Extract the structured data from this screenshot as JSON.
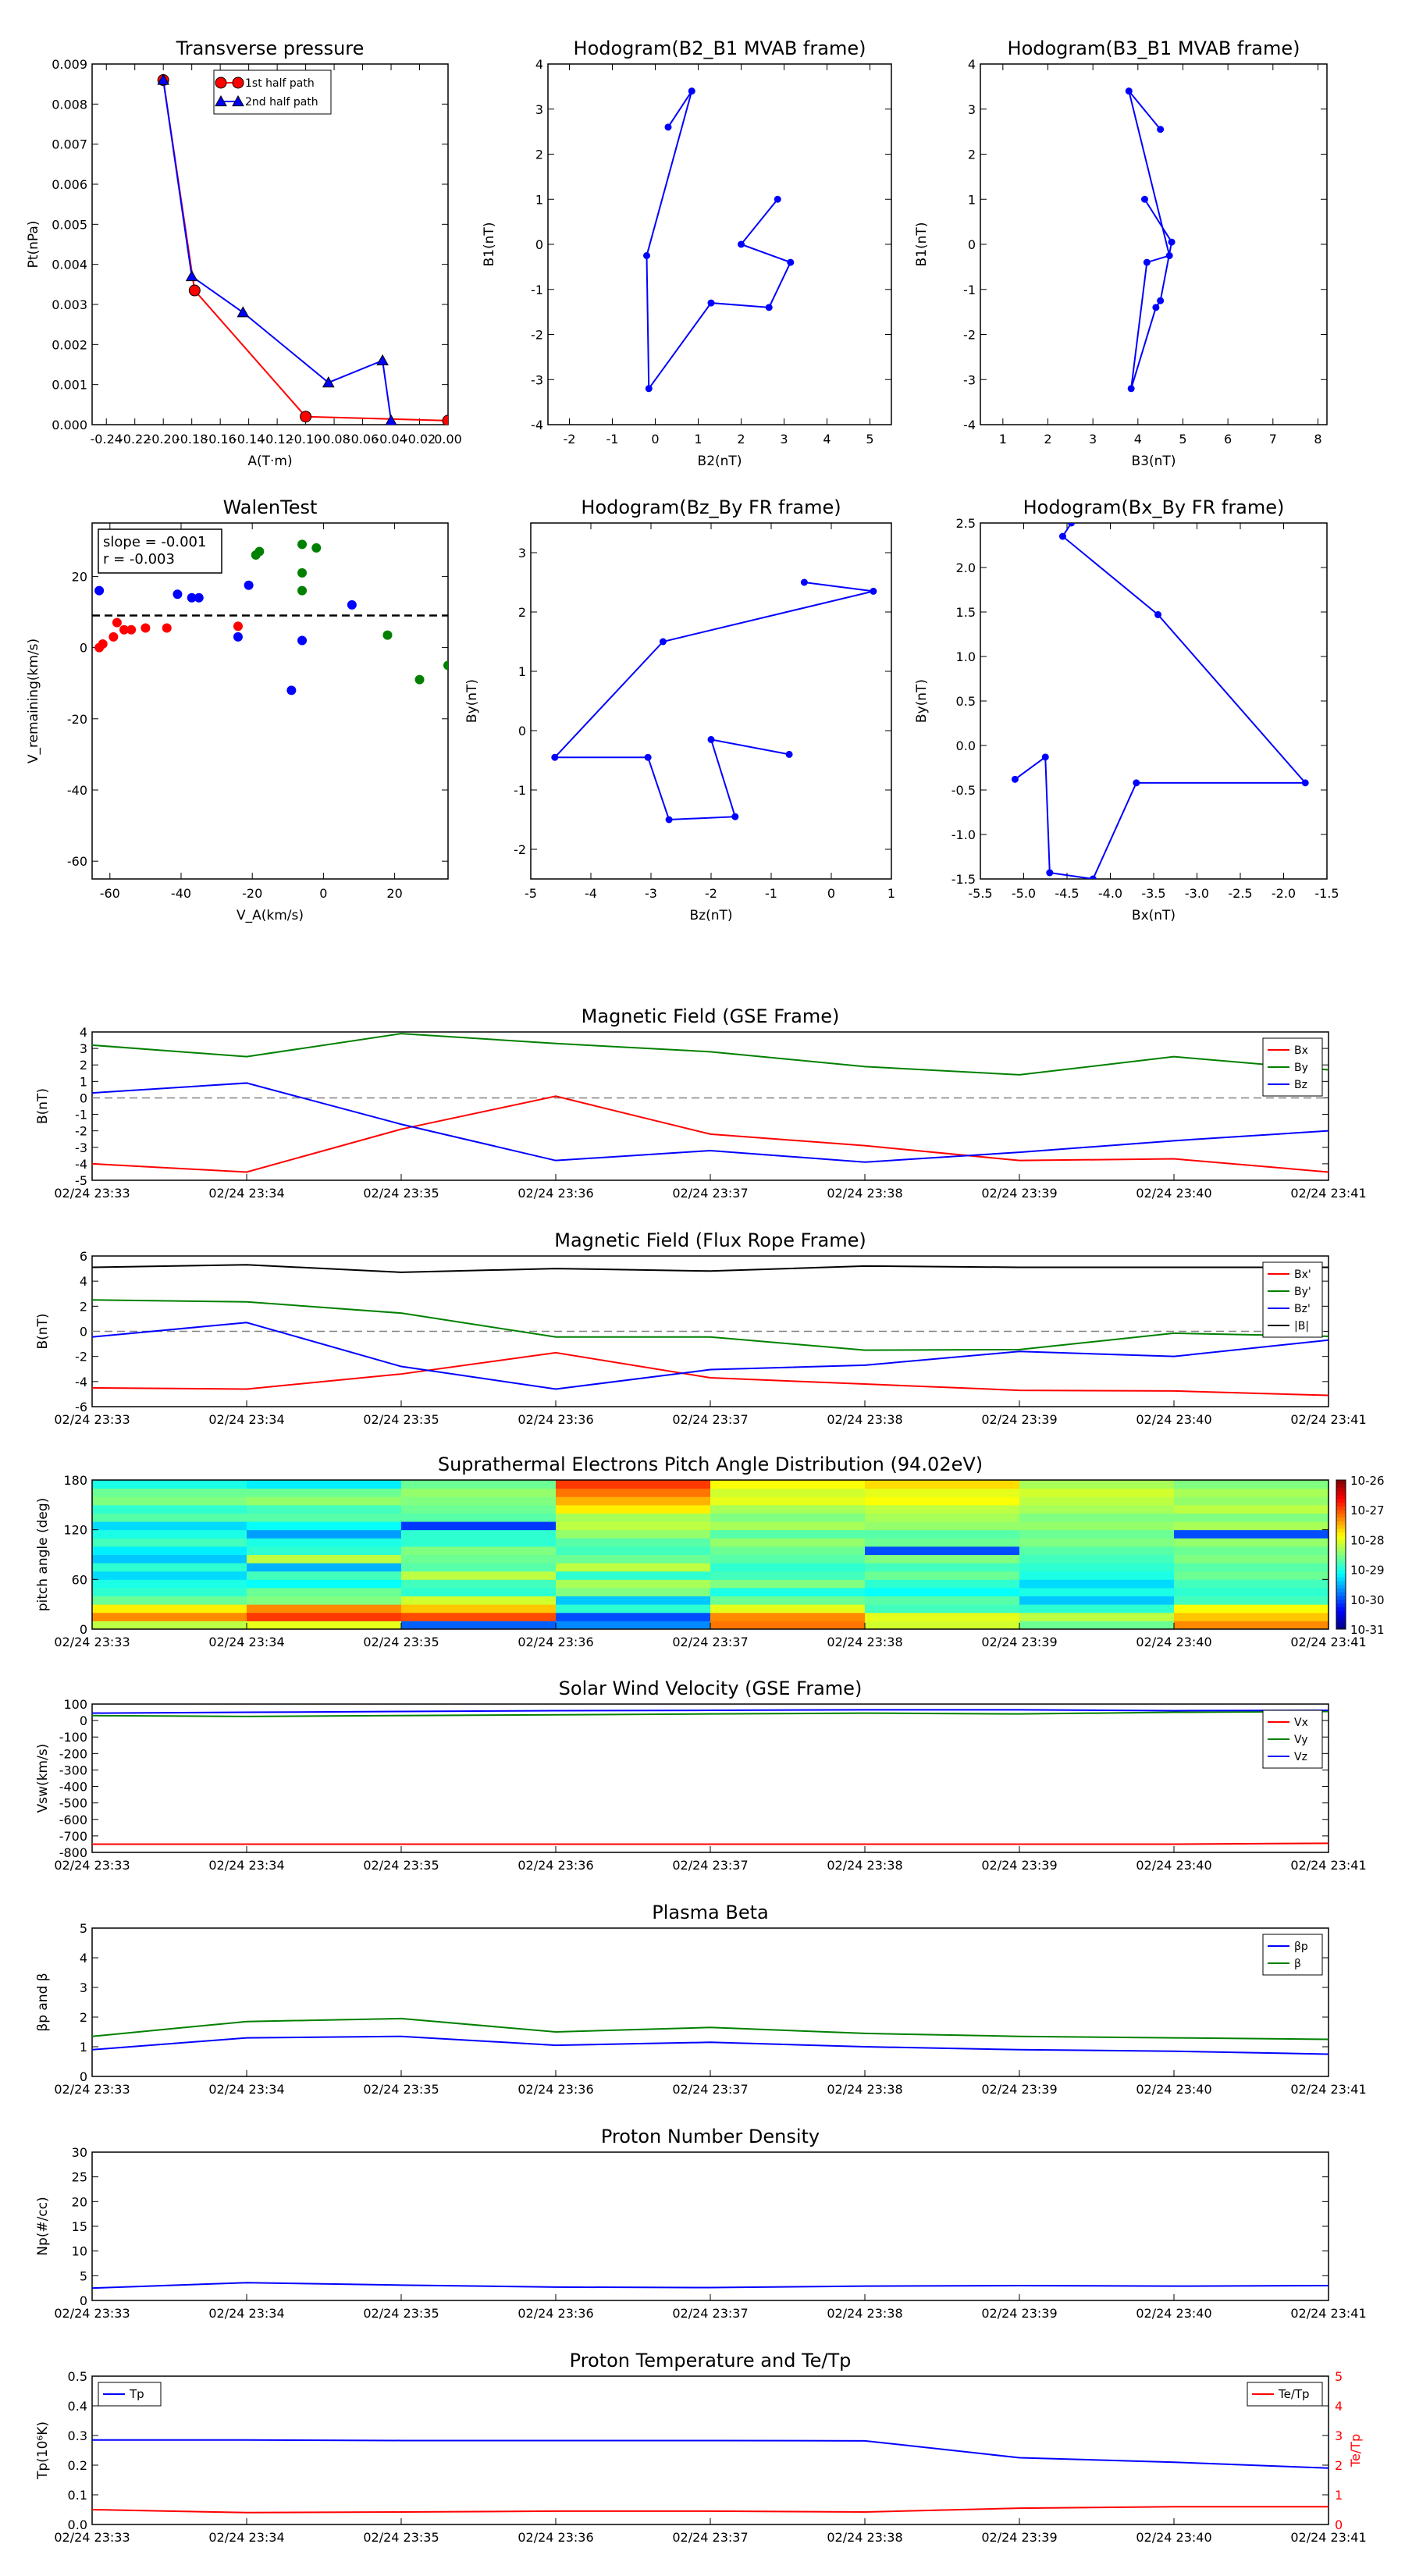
{
  "chart_data": [
    {
      "id": "transverse-pressure",
      "type": "line",
      "title": "Transverse pressure",
      "xlabel": "A(T·m)",
      "ylabel": "Pt(nPa)",
      "xlim": [
        -0.25,
        0.0
      ],
      "ylim": [
        0.0,
        0.009
      ],
      "xticks": [
        -0.24,
        -0.22,
        -0.2,
        -0.18,
        -0.16,
        -0.14,
        -0.12,
        -0.1,
        -0.08,
        -0.06,
        -0.04,
        -0.02,
        0.0
      ],
      "yticks": [
        0.0,
        0.001,
        0.002,
        0.003,
        0.004,
        0.005,
        0.006,
        0.007,
        0.008,
        0.009
      ],
      "legend_position": "top-right",
      "series": [
        {
          "name": "1st half path",
          "color": "#ff0000",
          "marker": "circle",
          "x": [
            -0.2,
            -0.178,
            -0.1,
            0.0
          ],
          "y": [
            0.0086,
            0.00335,
            0.0002,
            0.0001
          ]
        },
        {
          "name": "2nd half path",
          "color": "#0000ff",
          "marker": "triangle",
          "x": [
            -0.2,
            -0.18,
            -0.144,
            -0.084,
            -0.046,
            -0.04
          ],
          "y": [
            0.0086,
            0.0037,
            0.0028,
            0.00105,
            0.0016,
            0.0001
          ]
        }
      ]
    },
    {
      "id": "hodogram-b2-b1",
      "type": "line",
      "title": "Hodogram(B2_B1 MVAB frame)",
      "xlabel": "B2(nT)",
      "ylabel": "B1(nT)",
      "xlim": [
        -2.5,
        5.5
      ],
      "ylim": [
        -4,
        4
      ],
      "xticks": [
        -2,
        -1,
        0,
        1,
        2,
        3,
        4,
        5
      ],
      "yticks": [
        -4,
        -3,
        -2,
        -1,
        0,
        1,
        2,
        3,
        4
      ],
      "series": [
        {
          "color": "#0000ff",
          "marker": "dot",
          "x": [
            0.3,
            0.85,
            -0.2,
            -0.15,
            1.3,
            2.65,
            3.15,
            2.0,
            2.85
          ],
          "y": [
            2.6,
            3.4,
            -0.25,
            -3.2,
            -1.3,
            -1.4,
            -0.4,
            0.0,
            1.0
          ]
        }
      ]
    },
    {
      "id": "hodogram-b3-b1",
      "type": "line",
      "title": "Hodogram(B3_B1 MVAB frame)",
      "xlabel": "B3(nT)",
      "ylabel": "B1(nT)",
      "xlim": [
        0.5,
        8.2
      ],
      "ylim": [
        -4,
        4
      ],
      "xticks": [
        1,
        2,
        3,
        4,
        5,
        6,
        7,
        8
      ],
      "yticks": [
        -4,
        -3,
        -2,
        -1,
        0,
        1,
        2,
        3,
        4
      ],
      "series": [
        {
          "color": "#0000ff",
          "marker": "dot",
          "x": [
            4.5,
            3.8,
            4.7,
            4.2,
            3.85,
            4.4,
            4.5,
            4.75,
            4.15
          ],
          "y": [
            2.55,
            3.4,
            -0.25,
            -0.4,
            -3.2,
            -1.4,
            -1.25,
            0.05,
            1.0
          ]
        }
      ]
    },
    {
      "id": "walen-test",
      "type": "scatter",
      "title": "WalenTest",
      "xlabel": "V_A(km/s)",
      "ylabel": "V_remaining(km/s)",
      "xlim": [
        -65,
        35
      ],
      "ylim": [
        -65,
        35
      ],
      "xticks": [
        -60,
        -40,
        -20,
        0,
        20
      ],
      "yticks": [
        -60,
        -40,
        -20,
        0,
        20
      ],
      "annotation": [
        "slope = -0.001",
        "r = -0.003"
      ],
      "hline": 9,
      "series": [
        {
          "color": "#ff0000",
          "x": [
            -63,
            -62,
            -59,
            -58,
            -56,
            -54,
            -50,
            -44,
            -24
          ],
          "y": [
            0,
            1,
            3,
            7,
            5,
            5,
            5.5,
            5.5,
            6
          ]
        },
        {
          "color": "#0000ff",
          "x": [
            -63,
            -41,
            -37,
            -35,
            -24,
            -21,
            -6,
            -9,
            8
          ],
          "y": [
            16,
            15,
            14,
            14,
            3,
            17.5,
            2,
            -12,
            12
          ]
        },
        {
          "color": "#008000",
          "x": [
            -19,
            -18,
            -6,
            -6,
            -6,
            -2,
            18,
            27,
            35
          ],
          "y": [
            26,
            27,
            29,
            21,
            16,
            28,
            3.5,
            -9,
            -5
          ]
        }
      ]
    },
    {
      "id": "hodogram-bz-by",
      "type": "line",
      "title": "Hodogram(Bz_By FR frame)",
      "xlabel": "Bz(nT)",
      "ylabel": "By(nT)",
      "xlim": [
        -5,
        1
      ],
      "ylim": [
        -2.5,
        3.5
      ],
      "xticks": [
        -5,
        -4,
        -3,
        -2,
        -1,
        0,
        1
      ],
      "yticks": [
        -2,
        -1,
        0,
        1,
        2,
        3
      ],
      "series": [
        {
          "color": "#0000ff",
          "marker": "dot",
          "x": [
            -0.45,
            0.7,
            -2.8,
            -4.6,
            -3.05,
            -2.7,
            -1.6,
            -2.0,
            -0.7
          ],
          "y": [
            2.5,
            2.35,
            1.5,
            -0.45,
            -0.45,
            -1.5,
            -1.45,
            -0.15,
            -0.4
          ]
        }
      ]
    },
    {
      "id": "hodogram-bx-by",
      "type": "line",
      "title": "Hodogram(Bx_By FR frame)",
      "xlabel": "Bx(nT)",
      "ylabel": "By(nT)",
      "xlim": [
        -5.5,
        -1.5
      ],
      "ylim": [
        -1.5,
        2.5
      ],
      "xticks": [
        -5.5,
        -5.0,
        -4.5,
        -4.0,
        -3.5,
        -3.0,
        -2.5,
        -2.0,
        -1.5
      ],
      "yticks": [
        -1.5,
        -1.0,
        -0.5,
        0.0,
        0.5,
        1.0,
        1.5,
        2.0,
        2.5
      ],
      "series": [
        {
          "color": "#0000ff",
          "marker": "dot",
          "x": [
            -4.45,
            -4.55,
            -3.45,
            -1.75,
            -3.7,
            -4.2,
            -4.7,
            -4.75,
            -5.1
          ],
          "y": [
            2.5,
            2.35,
            1.47,
            -0.42,
            -0.42,
            -1.5,
            -1.43,
            -0.13,
            -0.38
          ]
        }
      ]
    },
    {
      "id": "magnetic-field-gse",
      "type": "line",
      "title": "Magnetic Field (GSE Frame)",
      "ylabel": "B(nT)",
      "ylim": [
        -5,
        4
      ],
      "yticks": [
        -5,
        -4,
        -3,
        -2,
        -1,
        0,
        1,
        2,
        3,
        4
      ],
      "hline": 0,
      "legend_position": "right",
      "categories": [
        "02/24 23:33",
        "02/24 23:34",
        "02/24 23:35",
        "02/24 23:36",
        "02/24 23:37",
        "02/24 23:38",
        "02/24 23:39",
        "02/24 23:40",
        "02/24 23:41"
      ],
      "series": [
        {
          "name": "Bx",
          "color": "#ff0000",
          "values": [
            -4.0,
            -4.5,
            -1.9,
            0.1,
            -2.2,
            -2.9,
            -3.8,
            -3.7,
            -4.5
          ]
        },
        {
          "name": "By",
          "color": "#008000",
          "values": [
            3.2,
            2.5,
            3.9,
            3.3,
            2.8,
            1.9,
            1.4,
            2.5,
            1.7
          ]
        },
        {
          "name": "Bz",
          "color": "#0000ff",
          "values": [
            0.3,
            0.9,
            -1.6,
            -3.8,
            -3.2,
            -3.9,
            -3.3,
            -2.6,
            -2.0
          ]
        }
      ]
    },
    {
      "id": "magnetic-field-flux-rope",
      "type": "line",
      "title": "Magnetic Field (Flux Rope Frame)",
      "ylabel": "B(nT)",
      "ylim": [
        -6,
        6
      ],
      "yticks": [
        -6,
        -4,
        -2,
        0,
        2,
        4,
        6
      ],
      "hline": 0,
      "legend_position": "right",
      "categories": [
        "02/24 23:33",
        "02/24 23:34",
        "02/24 23:35",
        "02/24 23:36",
        "02/24 23:37",
        "02/24 23:38",
        "02/24 23:39",
        "02/24 23:40",
        "02/24 23:41"
      ],
      "series": [
        {
          "name": "Bx'",
          "color": "#ff0000",
          "values": [
            -4.5,
            -4.6,
            -3.4,
            -1.7,
            -3.7,
            -4.2,
            -4.7,
            -4.75,
            -5.1
          ]
        },
        {
          "name": "By'",
          "color": "#008000",
          "values": [
            2.5,
            2.35,
            1.45,
            -0.45,
            -0.45,
            -1.5,
            -1.45,
            -0.15,
            -0.4
          ]
        },
        {
          "name": "Bz'",
          "color": "#0000ff",
          "values": [
            -0.45,
            0.7,
            -2.8,
            -4.6,
            -3.05,
            -2.7,
            -1.6,
            -2.0,
            -0.7
          ]
        },
        {
          "name": "|B|",
          "color": "#000000",
          "values": [
            5.1,
            5.3,
            4.7,
            5.0,
            4.8,
            5.2,
            5.1,
            5.1,
            5.1
          ]
        }
      ]
    },
    {
      "id": "pitch-angle-distribution",
      "type": "heatmap",
      "title": "Suprathermal Electrons Pitch Angle Distribution (94.02eV)",
      "ylabel": "pitch angle (deg)",
      "ylim": [
        0,
        180
      ],
      "yticks": [
        0,
        60,
        120,
        180
      ],
      "categories": [
        "02/24 23:33",
        "02/24 23:34",
        "02/24 23:35",
        "02/24 23:36",
        "02/24 23:37",
        "02/24 23:38",
        "02/24 23:39",
        "02/24 23:40",
        "02/24 23:41"
      ],
      "colorbar_ticks": [
        "10-31",
        "10-30",
        "10-29",
        "10-28",
        "10-27",
        "10-26"
      ],
      "colorbar_range_log10": [
        -31,
        -26
      ],
      "angle_bins": [
        0,
        10,
        20,
        30,
        40,
        50,
        60,
        70,
        80,
        90,
        100,
        110,
        120,
        130,
        140,
        150,
        160,
        170,
        180
      ],
      "values_log10": [
        [
          -28.2,
          -27.3,
          -27.8,
          -28.6,
          -28.9,
          -29.0,
          -29.3,
          -28.9,
          -29.4,
          -29.2,
          -28.8,
          -29.0,
          -29.3,
          -28.7,
          -28.9,
          -28.5,
          -28.6,
          -29.0
        ],
        [
          -28.0,
          -26.9,
          -27.3,
          -28.5,
          -28.6,
          -29.1,
          -28.8,
          -29.5,
          -28.2,
          -28.9,
          -29.0,
          -29.6,
          -29.1,
          -28.7,
          -28.8,
          -28.4,
          -28.6,
          -29.2
        ],
        [
          -29.9,
          -27.0,
          -27.6,
          -28.1,
          -28.9,
          -28.8,
          -28.2,
          -28.7,
          -28.6,
          -28.5,
          -28.9,
          -28.9,
          -30.1,
          -28.7,
          -28.6,
          -28.5,
          -28.4,
          -28.6
        ],
        [
          -29.7,
          -30.0,
          -28.9,
          -29.4,
          -28.5,
          -28.3,
          -28.9,
          -28.2,
          -28.6,
          -28.8,
          -28.7,
          -28.4,
          -28.2,
          -28.3,
          -27.8,
          -27.5,
          -27.2,
          -26.9
        ],
        [
          -27.2,
          -27.3,
          -28.0,
          -28.6,
          -29.0,
          -28.5,
          -28.8,
          -28.9,
          -28.7,
          -28.6,
          -28.4,
          -28.7,
          -28.3,
          -28.5,
          -28.3,
          -28.0,
          -28.1,
          -27.9
        ],
        [
          -28.1,
          -28.0,
          -28.8,
          -28.7,
          -29.1,
          -28.9,
          -28.6,
          -28.8,
          -28.5,
          -30.0,
          -28.6,
          -28.7,
          -28.4,
          -28.3,
          -28.2,
          -27.9,
          -28.0,
          -27.7
        ],
        [
          -28.6,
          -28.2,
          -28.9,
          -29.4,
          -29.0,
          -29.3,
          -29.0,
          -28.9,
          -28.8,
          -28.7,
          -28.5,
          -28.6,
          -28.4,
          -28.5,
          -28.3,
          -28.2,
          -28.1,
          -28.3
        ],
        [
          -27.3,
          -27.6,
          -27.9,
          -28.8,
          -28.9,
          -28.8,
          -28.6,
          -28.7,
          -28.5,
          -28.6,
          -28.4,
          -30.0,
          -28.3,
          -28.5,
          -28.2,
          -28.4,
          -28.3,
          -28.5
        ]
      ]
    },
    {
      "id": "solar-wind-velocity",
      "type": "line",
      "title": "Solar Wind Velocity (GSE Frame)",
      "ylabel": "Vsw(km/s)",
      "ylim": [
        -800,
        100
      ],
      "yticks": [
        -800,
        -700,
        -600,
        -500,
        -400,
        -300,
        -200,
        -100,
        0,
        100
      ],
      "legend_position": "right",
      "categories": [
        "02/24 23:33",
        "02/24 23:34",
        "02/24 23:35",
        "02/24 23:36",
        "02/24 23:37",
        "02/24 23:38",
        "02/24 23:39",
        "02/24 23:40",
        "02/24 23:41"
      ],
      "series": [
        {
          "name": "Vx",
          "color": "#ff0000",
          "values": [
            -750,
            -750,
            -750,
            -750,
            -750,
            -750,
            -750,
            -750,
            -745
          ]
        },
        {
          "name": "Vy",
          "color": "#008000",
          "values": [
            30,
            25,
            30,
            35,
            40,
            45,
            40,
            50,
            55
          ]
        },
        {
          "name": "Vz",
          "color": "#0000ff",
          "values": [
            45,
            50,
            55,
            60,
            62,
            65,
            65,
            60,
            62
          ]
        }
      ]
    },
    {
      "id": "plasma-beta",
      "type": "line",
      "title": "Plasma Beta",
      "ylabel": "βp and β",
      "ylim": [
        0,
        5
      ],
      "yticks": [
        0,
        1,
        2,
        3,
        4,
        5
      ],
      "legend_position": "top-right",
      "categories": [
        "02/24 23:33",
        "02/24 23:34",
        "02/24 23:35",
        "02/24 23:36",
        "02/24 23:37",
        "02/24 23:38",
        "02/24 23:39",
        "02/24 23:40",
        "02/24 23:41"
      ],
      "series": [
        {
          "name": "βp",
          "color": "#0000ff",
          "values": [
            0.9,
            1.3,
            1.35,
            1.05,
            1.15,
            1.0,
            0.9,
            0.85,
            0.75
          ]
        },
        {
          "name": "β",
          "color": "#008000",
          "values": [
            1.35,
            1.85,
            1.95,
            1.5,
            1.65,
            1.45,
            1.35,
            1.3,
            1.25
          ]
        }
      ]
    },
    {
      "id": "proton-number-density",
      "type": "line",
      "title": "Proton Number Density",
      "ylabel": "Np(#/cc)",
      "ylim": [
        0,
        30
      ],
      "yticks": [
        0,
        5,
        10,
        15,
        20,
        25,
        30
      ],
      "categories": [
        "02/24 23:33",
        "02/24 23:34",
        "02/24 23:35",
        "02/24 23:36",
        "02/24 23:37",
        "02/24 23:38",
        "02/24 23:39",
        "02/24 23:40",
        "02/24 23:41"
      ],
      "series": [
        {
          "color": "#0000ff",
          "values": [
            2.5,
            3.6,
            3.1,
            2.7,
            2.6,
            2.9,
            3.0,
            2.9,
            3.0
          ]
        }
      ]
    },
    {
      "id": "proton-temperature",
      "type": "line",
      "title": "Proton Temperature and Te/Tp",
      "ylabel": "Tp(10⁶K)",
      "ylabel_right": "Te/Tp",
      "ylim": [
        0,
        0.5
      ],
      "ylim_right": [
        0,
        5
      ],
      "yticks": [
        0.0,
        0.1,
        0.2,
        0.3,
        0.4,
        0.5
      ],
      "yticks_right": [
        0,
        1,
        2,
        3,
        4,
        5
      ],
      "categories": [
        "02/24 23:33",
        "02/24 23:34",
        "02/24 23:35",
        "02/24 23:36",
        "02/24 23:37",
        "02/24 23:38",
        "02/24 23:39",
        "02/24 23:40",
        "02/24 23:41"
      ],
      "series": [
        {
          "name": "Tp",
          "color": "#0000ff",
          "axis": "left",
          "legend_position": "top-left",
          "values": [
            0.285,
            0.285,
            0.283,
            0.283,
            0.283,
            0.282,
            0.225,
            0.21,
            0.19
          ]
        },
        {
          "name": "Te/Tp",
          "color": "#ff0000",
          "axis": "right",
          "legend_position": "top-right",
          "values": [
            0.5,
            0.4,
            0.42,
            0.45,
            0.45,
            0.42,
            0.55,
            0.6,
            0.6
          ]
        }
      ]
    }
  ]
}
